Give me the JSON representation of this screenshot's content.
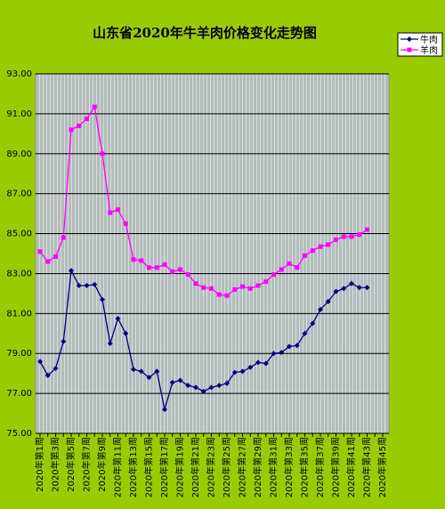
{
  "chart_data": {
    "type": "line",
    "title": "山东省2020年牛羊肉价格变化走势图",
    "categories": [
      "2020年第1周",
      null,
      "2020年第3周",
      null,
      "2020年第5周",
      null,
      "2020年第7周",
      null,
      "2020年第9周",
      null,
      "2020年第11周",
      null,
      "2020年第13周",
      null,
      "2020年第15周",
      null,
      "2020年第17周",
      null,
      "2020年第19周",
      null,
      "2020年第21周",
      null,
      "2020年第23周",
      null,
      "2020年第25周",
      null,
      "2020年第27周",
      null,
      "2020年第29周",
      null,
      "2020年第31周",
      null,
      "2020年第33周",
      null,
      "2020年第35周",
      null,
      "2020年第37周",
      null,
      "2020年第39周",
      null,
      "2020年第41周",
      null,
      "2020年第43周",
      null,
      "2020年第45周"
    ],
    "series": [
      {
        "name": "牛肉",
        "color": "#000080",
        "values": [
          78.6,
          77.9,
          78.25,
          79.6,
          83.15,
          82.4,
          82.4,
          82.45,
          81.7,
          79.5,
          80.75,
          80.0,
          78.2,
          78.1,
          77.8,
          78.1,
          76.2,
          77.55,
          77.65,
          77.4,
          77.3,
          77.1,
          77.3,
          77.4,
          77.5,
          78.05,
          78.1,
          78.3,
          78.55,
          78.5,
          79.0,
          79.05,
          79.35,
          79.4,
          80.0,
          80.5,
          81.2,
          81.6,
          82.1,
          82.25,
          82.5,
          82.3,
          82.3,
          null,
          null
        ]
      },
      {
        "name": "羊肉",
        "color": "#ff00ff",
        "values": [
          84.1,
          83.6,
          83.85,
          84.8,
          90.2,
          90.4,
          90.75,
          91.35,
          89.0,
          86.05,
          86.2,
          85.5,
          83.7,
          83.65,
          83.3,
          83.3,
          83.45,
          83.1,
          83.2,
          82.95,
          82.5,
          82.3,
          82.25,
          81.95,
          81.9,
          82.2,
          82.35,
          82.25,
          82.4,
          82.6,
          82.95,
          83.2,
          83.5,
          83.3,
          83.9,
          84.15,
          84.35,
          84.45,
          84.7,
          84.85,
          84.85,
          84.95,
          85.2,
          null,
          null
        ]
      }
    ],
    "ylim": [
      75,
      93
    ],
    "yticks": [
      {
        "value": 75,
        "label": "75.00"
      },
      {
        "value": 77,
        "label": "77.00"
      },
      {
        "value": 79,
        "label": "79.00"
      },
      {
        "value": 81,
        "label": "81.00"
      },
      {
        "value": 83,
        "label": "83.00"
      },
      {
        "value": 85,
        "label": "85.00"
      },
      {
        "value": 87,
        "label": "87.00"
      },
      {
        "value": 89,
        "label": "89.00"
      },
      {
        "value": 91,
        "label": "91.00"
      },
      {
        "value": 93,
        "label": "93.00"
      }
    ],
    "grid": true
  }
}
